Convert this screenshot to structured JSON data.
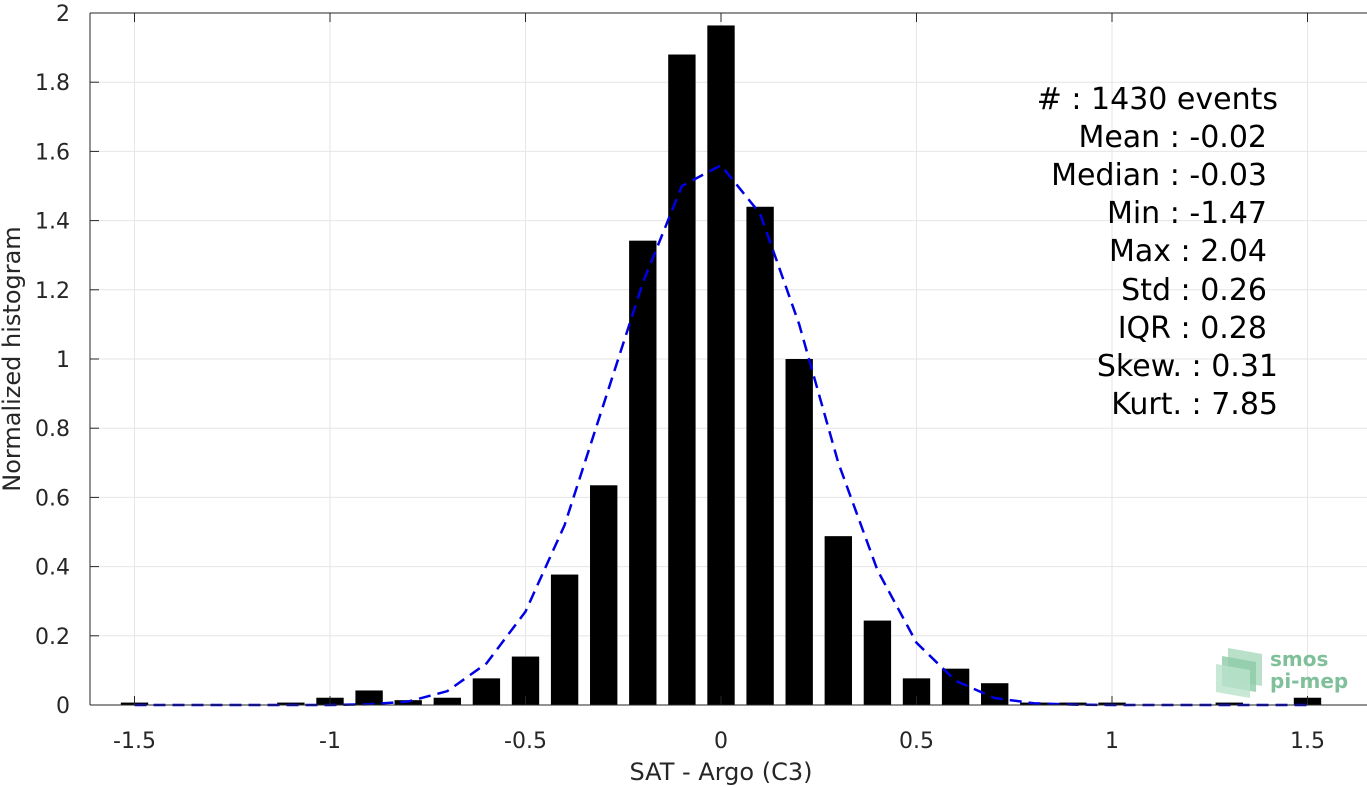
{
  "chart_data": {
    "type": "bar",
    "xlabel": "SAT - Argo (C3)",
    "ylabel": "Normalized histogram",
    "xlim": [
      -1.6,
      1.6
    ],
    "ylim": [
      0,
      2
    ],
    "xticks": [
      -1.5,
      -1,
      -0.5,
      0,
      0.5,
      1,
      1.5
    ],
    "xtick_labels": [
      "-1.5",
      "-1",
      "-0.5",
      "0",
      "0.5",
      "1",
      "1.5"
    ],
    "yticks": [
      0,
      0.2,
      0.4,
      0.6,
      0.8,
      1,
      1.2,
      1.4,
      1.6,
      1.8,
      2
    ],
    "ytick_labels": [
      "0",
      "0.2",
      "0.4",
      "0.6",
      "0.8",
      "1",
      "1.2",
      "1.4",
      "1.6",
      "1.8",
      "2"
    ],
    "grid": true,
    "bars": {
      "color": "#000000",
      "width": 0.07,
      "x": [
        -1.5,
        -1.4,
        -1.3,
        -1.2,
        -1.1,
        -1.0,
        -0.9,
        -0.8,
        -0.7,
        -0.6,
        -0.5,
        -0.4,
        -0.3,
        -0.2,
        -0.1,
        0.0,
        0.1,
        0.2,
        0.3,
        0.4,
        0.5,
        0.6,
        0.7,
        0.8,
        0.9,
        1.0,
        1.1,
        1.2,
        1.3,
        1.4,
        1.5
      ],
      "values": [
        0.007,
        0,
        0,
        0,
        0.007,
        0.021,
        0.042,
        0.014,
        0.021,
        0.077,
        0.14,
        0.377,
        0.635,
        1.342,
        1.88,
        1.964,
        1.44,
        1.0,
        0.488,
        0.244,
        0.077,
        0.105,
        0.063,
        0.007,
        0.007,
        0.007,
        0,
        0,
        0.007,
        0,
        0.021
      ]
    },
    "fit": {
      "color": "#0000e6",
      "style": "dashed",
      "x": [
        -1.5,
        -1.4,
        -1.3,
        -1.2,
        -1.1,
        -1.0,
        -0.9,
        -0.8,
        -0.7,
        -0.6,
        -0.5,
        -0.4,
        -0.3,
        -0.2,
        -0.1,
        0.0,
        0.1,
        0.2,
        0.3,
        0.4,
        0.5,
        0.6,
        0.7,
        0.8,
        0.9,
        1.0,
        1.1,
        1.2,
        1.3,
        1.4,
        1.5
      ],
      "values": [
        0,
        0,
        0,
        0,
        0,
        0,
        0.002,
        0.01,
        0.04,
        0.12,
        0.27,
        0.52,
        0.87,
        1.22,
        1.5,
        1.56,
        1.42,
        1.1,
        0.7,
        0.39,
        0.18,
        0.07,
        0.02,
        0.005,
        0.001,
        0,
        0,
        0,
        0,
        0,
        0
      ]
    }
  },
  "stats": [
    "#  : 1430 events",
    "Mean : -0.02",
    "Median : -0.03",
    "Min : -1.47",
    "Max : 2.04",
    "Std : 0.26",
    "IQR : 0.28",
    "Skew. : 0.31",
    "Kurt. : 7.85"
  ],
  "logo": {
    "line1": "smos",
    "line2": "pi-mep"
  },
  "colors": {
    "bar": "#000000",
    "fit": "#0000e6",
    "grid": "#e6e6e6",
    "axis": "#262626",
    "logo": "#7fbf9a"
  }
}
